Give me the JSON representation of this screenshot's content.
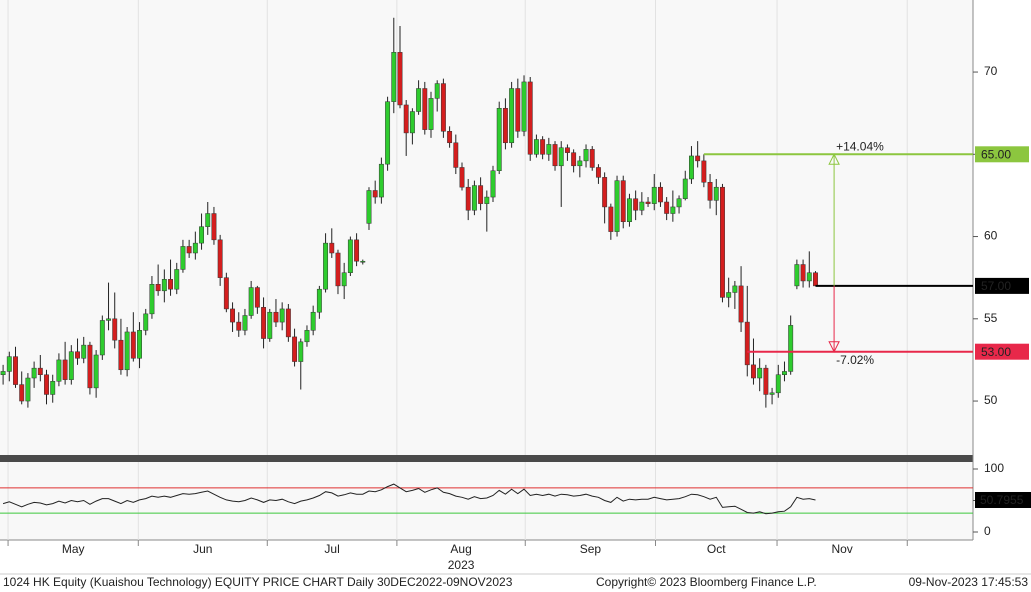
{
  "chart_data": {
    "type": "candlestick",
    "title": "1024 HK Equity (Kuaishou Technology) EQUITY PRICE CHART  Daily 30DEC2022-09NOV2023",
    "copyright": "Copyright© 2023 Bloomberg Finance L.P.",
    "timestamp": "09-Nov-2023 17:45:53",
    "year": "2023",
    "categories": [
      "May",
      "Jun",
      "Jul",
      "Aug",
      "Sep",
      "Oct",
      "Nov"
    ],
    "xticks": [
      0.8,
      21.8,
      42.6,
      63.5,
      84.2,
      105.2,
      124.8,
      145.8
    ],
    "xlim": [
      -0.5,
      156.4
    ],
    "ylim": [
      46.72,
      74.38
    ],
    "yticks": [
      50,
      55,
      60,
      65,
      70
    ],
    "up_color": "#2ecc2e",
    "down_color": "#d41e1e",
    "open": [
      51.6,
      51.8,
      52.7,
      51.0,
      50.0,
      51.4,
      52.0,
      51.6,
      50.4,
      51.2,
      52.5,
      51.3,
      53.0,
      52.6,
      53.4,
      50.8,
      52.8,
      54.9,
      55.0,
      53.7,
      51.9,
      54.2,
      52.6,
      54.3,
      55.3,
      57.1,
      56.7,
      57.4,
      56.8,
      58.0,
      59.4,
      59.0,
      59.6,
      60.6,
      61.4,
      59.8,
      57.5,
      55.6,
      54.8,
      54.3,
      55.2,
      56.9,
      55.7,
      53.8,
      55.4,
      54.8,
      55.6,
      53.9,
      52.4,
      53.6,
      54.3,
      55.4,
      56.8,
      59.6,
      59.0,
      57.0,
      57.8,
      59.8,
      58.5,
      60.8,
      62.8,
      62.4,
      64.4,
      68.2,
      71.2,
      68.0,
      66.3,
      67.6,
      69.0,
      66.5,
      68.4,
      69.3,
      66.4,
      65.7,
      64.2,
      63.0,
      61.6,
      63.1,
      62.0,
      62.4,
      64.0,
      67.8,
      65.7,
      69.0,
      66.4,
      69.4,
      65.0,
      65.9,
      65.0,
      65.6,
      64.3,
      65.4,
      65.1,
      64.3,
      64.6,
      65.3,
      64.2,
      63.6,
      61.8,
      60.3,
      63.4,
      60.9,
      62.3,
      61.6,
      62.1,
      62.0,
      63.0,
      62.1,
      61.4,
      61.8,
      62.3,
      63.5,
      64.9,
      64.6,
      63.3,
      62.2,
      63.0,
      56.3,
      56.6,
      57.0,
      54.8,
      52.2,
      51.4,
      52.0,
      50.4,
      50.5,
      51.6,
      51.8,
      57.0,
      58.3,
      57.3,
      57.8
    ],
    "high": [
      52.2,
      53.0,
      53.3,
      51.8,
      51.7,
      52.4,
      52.8,
      51.9,
      51.6,
      52.9,
      53.6,
      53.4,
      53.8,
      53.9,
      53.6,
      53.1,
      55.2,
      57.2,
      56.6,
      55.0,
      54.5,
      55.4,
      54.8,
      55.6,
      57.6,
      58.3,
      58.0,
      58.6,
      58.4,
      59.8,
      59.8,
      60.3,
      61.4,
      62.1,
      61.8,
      60.1,
      57.8,
      56.0,
      55.4,
      55.6,
      57.3,
      57.0,
      56.3,
      55.6,
      56.2,
      56.0,
      55.9,
      54.4,
      53.8,
      54.6,
      55.8,
      57.0,
      60.2,
      60.5,
      59.2,
      58.4,
      60.0,
      60.2,
      58.6,
      63.0,
      63.4,
      64.8,
      68.5,
      73.3,
      72.8,
      68.3,
      67.8,
      69.5,
      69.4,
      68.8,
      69.5,
      69.6,
      66.7,
      66.2,
      64.5,
      63.5,
      63.4,
      63.6,
      62.8,
      64.3,
      68.2,
      68.4,
      69.4,
      69.6,
      69.8,
      69.7,
      66.2,
      66.1,
      66.0,
      65.8,
      65.8,
      65.6,
      65.3,
      64.9,
      65.6,
      65.5,
      64.4,
      63.9,
      62.0,
      63.7,
      63.7,
      62.6,
      62.8,
      62.7,
      62.4,
      63.8,
      63.3,
      62.4,
      62.8,
      62.5,
      64.0,
      65.5,
      65.8,
      65.0,
      63.8,
      63.5,
      63.2,
      57.5,
      57.3,
      58.2,
      57.0,
      53.8,
      52.6,
      52.2,
      50.8,
      52.2,
      52.4,
      55.2,
      58.6,
      58.6,
      59.1,
      57.9
    ],
    "low": [
      51.0,
      51.2,
      50.8,
      49.8,
      49.6,
      50.8,
      51.2,
      49.8,
      49.9,
      50.9,
      51.0,
      51.0,
      52.2,
      52.3,
      50.4,
      50.2,
      52.5,
      54.3,
      53.2,
      51.6,
      51.5,
      52.4,
      52.0,
      54.0,
      55.0,
      56.4,
      56.0,
      56.4,
      56.5,
      57.8,
      58.7,
      58.6,
      59.2,
      60.1,
      59.5,
      57.0,
      55.4,
      54.2,
      53.9,
      54.0,
      55.0,
      55.3,
      53.2,
      53.6,
      54.5,
      54.3,
      53.6,
      52.1,
      50.7,
      53.3,
      54.0,
      55.0,
      56.6,
      58.7,
      56.5,
      56.2,
      57.6,
      58.2,
      58.3,
      60.4,
      62.0,
      62.0,
      64.0,
      67.5,
      67.8,
      64.9,
      65.6,
      67.4,
      66.2,
      66.0,
      67.6,
      66.0,
      65.4,
      63.8,
      62.8,
      61.0,
      61.3,
      61.6,
      60.3,
      62.1,
      63.8,
      65.3,
      65.4,
      66.0,
      66.1,
      64.6,
      64.8,
      64.7,
      64.6,
      64.0,
      61.8,
      64.6,
      63.9,
      63.6,
      64.2,
      64.0,
      63.2,
      60.8,
      59.8,
      60.0,
      60.5,
      60.6,
      61.0,
      61.3,
      61.8,
      61.6,
      61.8,
      61.0,
      60.9,
      61.4,
      62.2,
      63.2,
      64.2,
      63.0,
      61.7,
      61.3,
      56.0,
      55.7,
      55.6,
      54.2,
      51.5,
      51.0,
      50.6,
      49.6,
      49.8,
      50.2,
      51.2,
      51.6,
      56.8,
      56.9,
      56.9,
      57.0
    ],
    "close": [
      51.8,
      52.7,
      51.0,
      50.0,
      51.4,
      52.0,
      51.6,
      50.4,
      51.2,
      52.5,
      51.3,
      53.0,
      52.6,
      53.4,
      50.8,
      52.8,
      54.9,
      55.0,
      53.7,
      51.9,
      54.2,
      52.6,
      54.3,
      55.3,
      57.1,
      56.7,
      57.4,
      56.8,
      58.0,
      59.4,
      59.0,
      59.6,
      60.6,
      61.4,
      59.8,
      57.5,
      55.6,
      54.8,
      54.3,
      55.2,
      56.9,
      55.7,
      53.8,
      55.4,
      54.8,
      55.6,
      53.9,
      52.4,
      53.6,
      54.3,
      55.4,
      56.8,
      59.6,
      59.0,
      57.0,
      57.8,
      59.8,
      58.5,
      58.5,
      62.8,
      62.4,
      64.4,
      68.2,
      71.2,
      68.0,
      66.3,
      67.6,
      69.0,
      66.5,
      68.4,
      69.3,
      66.4,
      65.7,
      64.2,
      63.0,
      61.6,
      63.1,
      62.0,
      62.4,
      64.0,
      67.8,
      65.7,
      69.0,
      66.4,
      69.4,
      65.0,
      65.9,
      65.0,
      65.6,
      64.3,
      65.4,
      65.1,
      64.3,
      64.6,
      65.3,
      64.2,
      63.6,
      61.8,
      60.3,
      63.4,
      60.9,
      62.3,
      61.6,
      62.1,
      62.0,
      63.0,
      62.1,
      61.4,
      61.8,
      62.3,
      63.5,
      64.9,
      64.6,
      63.3,
      62.2,
      63.0,
      56.3,
      56.6,
      57.0,
      54.8,
      52.2,
      51.4,
      52.0,
      50.4,
      50.5,
      51.6,
      51.8,
      54.6,
      58.3,
      57.3,
      57.8,
      57.0
    ],
    "levels": [
      {
        "value": 65,
        "label": "65.00",
        "x": 113,
        "color": "#8cc63f"
      },
      {
        "value": 57,
        "label": "57.00",
        "x": 131,
        "color": "#000000"
      },
      {
        "value": 53,
        "label": "53.00",
        "x": 120,
        "color": "#e8284a"
      }
    ],
    "annotations": [
      {
        "text": "+14.04%",
        "from": 57,
        "to": 65,
        "color": "#8cc63f"
      },
      {
        "text": "-7.02%",
        "from": 57,
        "to": 53,
        "color": "#e8284a"
      }
    ],
    "rsi": {
      "values": [
        45,
        48,
        44,
        40,
        44,
        47,
        46,
        43,
        45,
        49,
        46,
        50,
        48,
        50,
        44,
        49,
        53,
        53,
        49,
        45,
        50,
        47,
        51,
        53,
        57,
        55,
        57,
        55,
        58,
        61,
        60,
        61,
        63,
        65,
        60,
        55,
        51,
        49,
        48,
        50,
        54,
        51,
        47,
        51,
        50,
        52,
        48,
        45,
        49,
        51,
        54,
        58,
        64,
        62,
        57,
        59,
        62,
        60,
        60,
        65,
        64,
        67,
        72,
        76,
        70,
        64,
        66,
        69,
        63,
        67,
        70,
        63,
        61,
        57,
        55,
        52,
        56,
        53,
        54,
        58,
        66,
        60,
        68,
        61,
        68,
        58,
        60,
        58,
        60,
        57,
        60,
        59,
        57,
        58,
        60,
        57,
        55,
        50,
        47,
        55,
        49,
        52,
        51,
        52,
        52,
        55,
        53,
        51,
        52,
        53,
        56,
        60,
        59,
        56,
        52,
        55,
        39,
        40,
        41,
        36,
        31,
        30,
        32,
        29,
        30,
        32,
        33,
        40,
        55,
        52,
        53,
        50.7955
      ],
      "color": "#222222",
      "ylim": [
        -12.7,
        111.1
      ],
      "yticks": [
        0,
        50,
        100
      ],
      "upper": 70,
      "upper_color": "#e03030",
      "lower": 30,
      "lower_color": "#3cc83c"
    }
  }
}
